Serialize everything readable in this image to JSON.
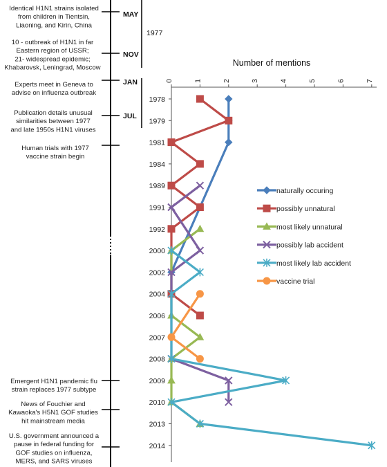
{
  "timeline": {
    "events": [
      {
        "id": "strains",
        "lines": [
          "Identical H1N1 strains isolated",
          "from children in Tientsin,",
          "Liaoning, and Kirin, China"
        ]
      },
      {
        "id": "ussr",
        "lines": [
          "10 - outbreak of H1N1 in far",
          "Eastern region of USSR;",
          "21- widespread epidemic;",
          "Khabarovsk, Leningrad, Moscow"
        ]
      },
      {
        "id": "geneva",
        "lines": [
          "Experts meet in Geneva to",
          "advise on influenza outbreak"
        ]
      },
      {
        "id": "publication",
        "lines": [
          "Publication details unusual",
          "similarities between 1977",
          "and late 1950s H1N1 viruses"
        ]
      },
      {
        "id": "trials",
        "lines": [
          "Human trials with 1977",
          "vaccine strain begin"
        ]
      },
      {
        "id": "pandemic",
        "lines": [
          "Emergent H1N1 pandemic flu",
          "strain replaces 1977 subtype"
        ]
      },
      {
        "id": "fouchier",
        "lines": [
          "News of Fouchier and",
          "Kawaoka's H5N1 GOF studies",
          "hit mainstream media"
        ]
      },
      {
        "id": "funding",
        "lines": [
          "U.S. government announced a",
          "pause in federal funding for",
          "GOF studies on influenza,",
          "MERS, and SARS viruses"
        ]
      }
    ],
    "months": [
      "MAY",
      "NOV",
      "JAN",
      "JUL"
    ],
    "year_label": "1977"
  },
  "chart_data": {
    "type": "line",
    "orientation": "horizontal-values",
    "xlabel": "Number of mentions",
    "xlim": [
      0,
      7
    ],
    "xticks": [
      0,
      1,
      2,
      3,
      4,
      5,
      6,
      7
    ],
    "categories": [
      "1978",
      "1979",
      "1981",
      "1984",
      "1989",
      "1991",
      "1992",
      "2000",
      "2002",
      "2004",
      "2006",
      "2007",
      "2008",
      "2009",
      "2010",
      "2013",
      "2014"
    ],
    "legend_position": "right",
    "series": [
      {
        "name": "naturally occuring",
        "color": "#4a7ebb",
        "marker": "diamond",
        "points": [
          [
            "1978",
            2
          ],
          [
            "1979",
            2
          ],
          [
            "1981",
            2
          ],
          [
            "2002",
            0
          ]
        ]
      },
      {
        "name": "possibly unnatural",
        "color": "#be4b48",
        "marker": "square",
        "points": [
          [
            "1978",
            1
          ],
          [
            "1979",
            2
          ],
          [
            "1981",
            0
          ],
          [
            "1984",
            1
          ],
          [
            "1989",
            0
          ],
          [
            "1991",
            1
          ],
          [
            "1992",
            0
          ],
          [
            "2004",
            0
          ],
          [
            "2006",
            1
          ]
        ]
      },
      {
        "name": "most likely unnatural",
        "color": "#98b954",
        "marker": "triangle",
        "points": [
          [
            "1992",
            1
          ],
          [
            "2000",
            0
          ],
          [
            "2006",
            0
          ],
          [
            "2007",
            1
          ],
          [
            "2008",
            0
          ],
          [
            "2009",
            0
          ],
          [
            "2010",
            0
          ],
          [
            "2013",
            1
          ]
        ]
      },
      {
        "name": "possibly lab accident",
        "color": "#7d60a0",
        "marker": "x",
        "points": [
          [
            "1989",
            1
          ],
          [
            "1991",
            0
          ],
          [
            "2000",
            1
          ],
          [
            "2002",
            0
          ],
          [
            "2008",
            0
          ],
          [
            "2009",
            2
          ],
          [
            "2010",
            2
          ]
        ]
      },
      {
        "name": "most likely lab accident",
        "color": "#4bacc6",
        "marker": "star",
        "points": [
          [
            "2000",
            0
          ],
          [
            "2002",
            1
          ],
          [
            "2004",
            0
          ],
          [
            "2008",
            0
          ],
          [
            "2009",
            4
          ],
          [
            "2010",
            0
          ],
          [
            "2013",
            1
          ],
          [
            "2014",
            7
          ]
        ]
      },
      {
        "name": "vaccine trial",
        "color": "#f79646",
        "marker": "circle",
        "points": [
          [
            "2004",
            1
          ],
          [
            "2007",
            0
          ],
          [
            "2008",
            1
          ]
        ]
      }
    ]
  }
}
